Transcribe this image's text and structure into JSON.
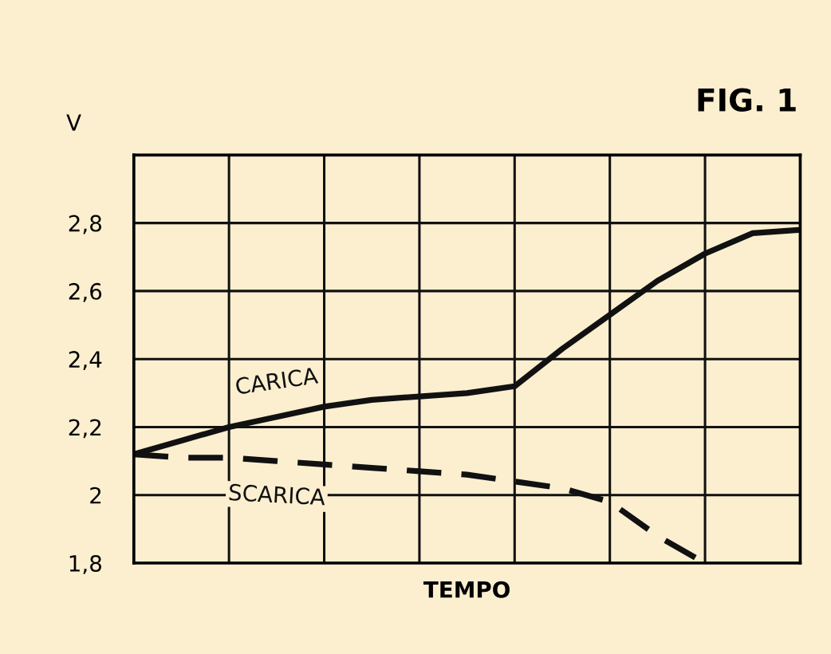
{
  "chart_data": {
    "type": "line",
    "title": "FIG. 1",
    "ylabel": "V",
    "xlabel": "TEMPO",
    "categories": [
      null,
      null,
      null,
      null,
      null,
      null,
      null,
      null,
      null,
      null,
      null,
      null,
      null,
      null,
      null
    ],
    "ylim": [
      1.8,
      3.0
    ],
    "yticks": [
      {
        "value": 1.8,
        "label": "1,8"
      },
      {
        "value": 2,
        "label": "2"
      },
      {
        "value": 2.2,
        "label": "2,2"
      },
      {
        "value": 2.4,
        "label": "2,4"
      },
      {
        "value": 2.6,
        "label": "2,6"
      },
      {
        "value": 2.8,
        "label": "2,8"
      },
      {
        "value": 3.0,
        "label": null
      }
    ],
    "tick_labels": "y",
    "grid": true,
    "series": [
      {
        "name": "CARICA",
        "color": "#111111",
        "line_style": "solid",
        "values": [
          2.12,
          2.16,
          2.2,
          2.23,
          2.26,
          2.28,
          2.29,
          2.3,
          2.32,
          2.43,
          2.53,
          2.63,
          2.71,
          2.77,
          2.78
        ]
      },
      {
        "name": "SCARICA",
        "color": "#111111",
        "line_style": "dashed",
        "values": [
          2.12,
          2.11,
          2.11,
          2.1,
          2.09,
          2.08,
          2.07,
          2.06,
          2.04,
          2.02,
          1.98,
          1.88,
          1.8,
          null,
          null
        ]
      }
    ]
  }
}
